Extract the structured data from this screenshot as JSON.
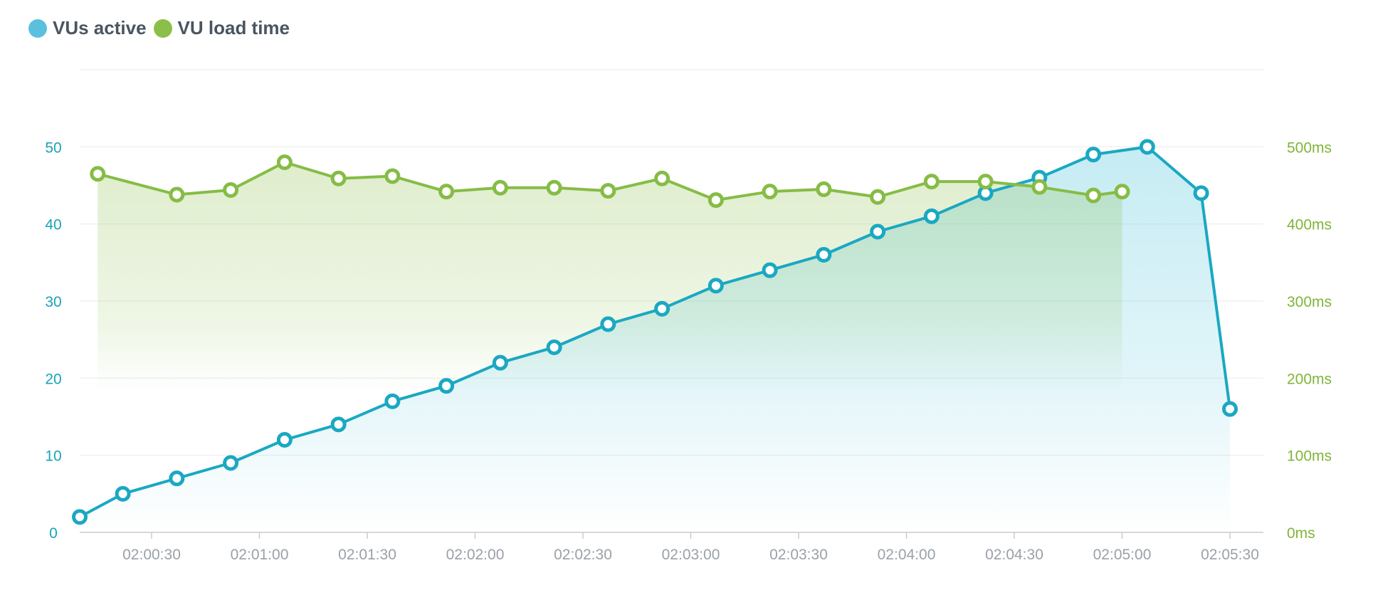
{
  "legend": [
    {
      "label": "VUs active",
      "color": "#5bc0de"
    },
    {
      "label": "VU load time",
      "color": "#8bbf4a"
    }
  ],
  "chart_data": {
    "type": "line",
    "x_ticks": [
      "02:00:30",
      "02:01:00",
      "02:01:30",
      "02:02:00",
      "02:02:30",
      "02:03:00",
      "02:03:30",
      "02:04:00",
      "02:04:30",
      "02:05:00",
      "02:05:30"
    ],
    "y_left": {
      "ticks": [
        "0",
        "10",
        "20",
        "30",
        "40",
        "50"
      ],
      "range": [
        0,
        60
      ],
      "color": "#1aa3b8"
    },
    "y_right": {
      "ticks": [
        "0ms",
        "100ms",
        "200ms",
        "300ms",
        "400ms",
        "500ms"
      ],
      "range": [
        0,
        600
      ],
      "color": "#7fb539"
    },
    "grid": true,
    "series": [
      {
        "name": "VUs active",
        "axis": "left",
        "color": "#1aa8c2",
        "x": [
          "02:00:10",
          "02:00:22",
          "02:00:37",
          "02:00:52",
          "02:01:07",
          "02:01:22",
          "02:01:37",
          "02:01:52",
          "02:02:07",
          "02:02:22",
          "02:02:37",
          "02:02:52",
          "02:03:07",
          "02:03:22",
          "02:03:37",
          "02:03:52",
          "02:04:07",
          "02:04:22",
          "02:04:37",
          "02:04:52",
          "02:05:07",
          "02:05:22",
          "02:05:30"
        ],
        "values": [
          2,
          5,
          7,
          9,
          12,
          14,
          17,
          19,
          22,
          24,
          27,
          29,
          32,
          34,
          36,
          39,
          41,
          44,
          46,
          49,
          50,
          44,
          16
        ]
      },
      {
        "name": "VU load time",
        "axis": "right",
        "color": "#86bc45",
        "x": [
          "02:00:15",
          "02:00:37",
          "02:00:52",
          "02:01:07",
          "02:01:22",
          "02:01:37",
          "02:01:52",
          "02:02:07",
          "02:02:22",
          "02:02:37",
          "02:02:52",
          "02:03:07",
          "02:03:22",
          "02:03:37",
          "02:03:52",
          "02:04:07",
          "02:04:22",
          "02:04:37",
          "02:04:52",
          "02:05:00"
        ],
        "values": [
          465,
          438,
          444,
          480,
          459,
          462,
          442,
          447,
          447,
          443,
          459,
          431,
          442,
          445,
          435,
          455,
          455,
          448,
          437,
          442
        ]
      }
    ]
  }
}
